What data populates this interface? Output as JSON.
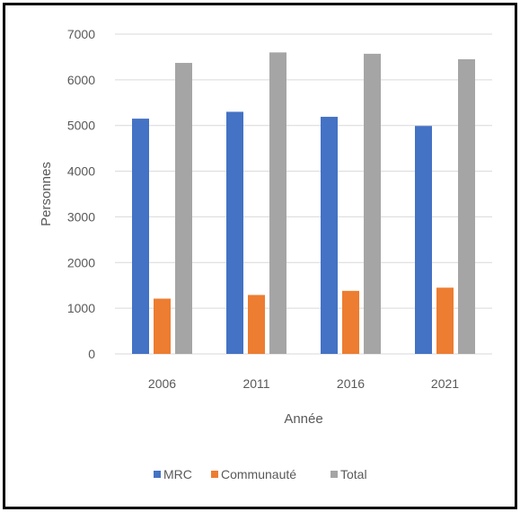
{
  "chart_data": {
    "type": "bar",
    "title": "",
    "xlabel": "Année",
    "ylabel": "Personnes",
    "categories": [
      "2006",
      "2011",
      "2016",
      "2021"
    ],
    "series": [
      {
        "name": "MRC",
        "values": [
          5150,
          5300,
          5190,
          4990
        ],
        "color": "#4472c4"
      },
      {
        "name": "Communauté",
        "values": [
          1210,
          1290,
          1380,
          1450
        ],
        "color": "#ed7d31"
      },
      {
        "name": "Total",
        "values": [
          6370,
          6600,
          6570,
          6450
        ],
        "color": "#a5a5a5"
      }
    ],
    "ylim": [
      0,
      7000
    ],
    "yticks": [
      0,
      1000,
      2000,
      3000,
      4000,
      5000,
      6000,
      7000
    ],
    "grid": true,
    "legend": "bottom"
  }
}
